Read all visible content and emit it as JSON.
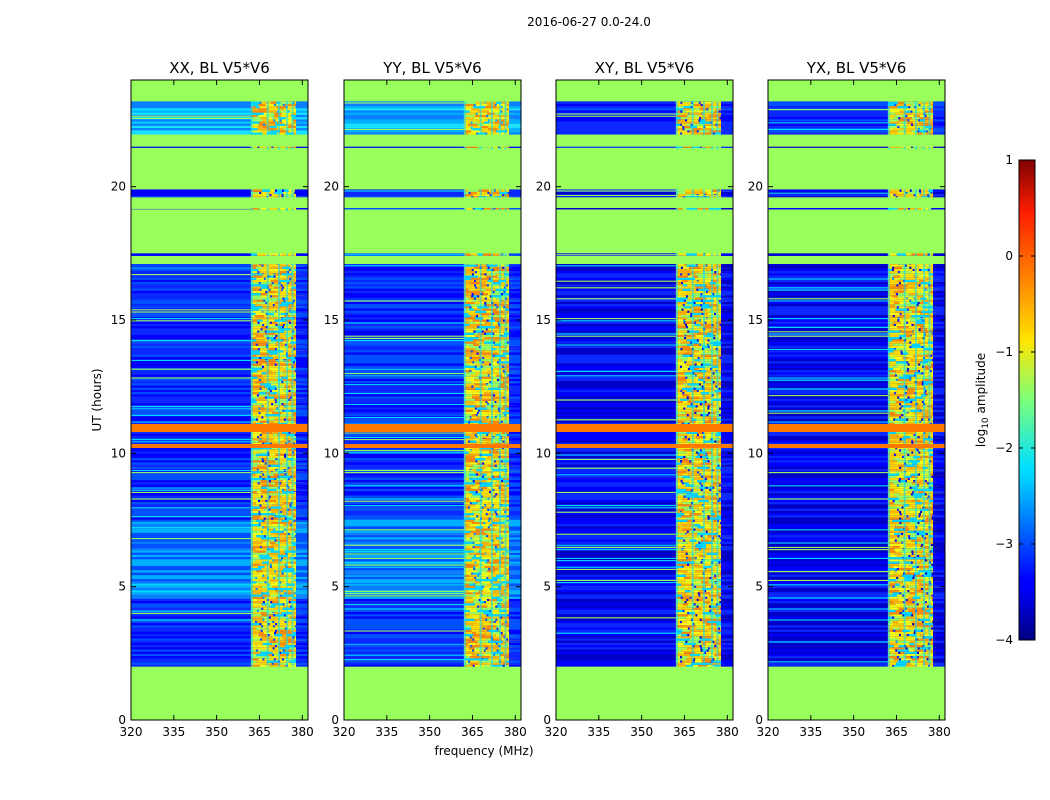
{
  "chart_data": {
    "type": "heatmap",
    "suptitle": "2016-06-27 0.0-24.0",
    "xlabel": "frequency (MHz)",
    "ylabel": "UT (hours)",
    "xlim": [
      320,
      382
    ],
    "ylim": [
      0,
      24
    ],
    "x_ticks": [
      320,
      335,
      350,
      365,
      380
    ],
    "y_ticks": [
      0,
      5,
      10,
      15,
      20
    ],
    "panels": [
      {
        "title": "XX, BL V5*V6",
        "variant": "parallel"
      },
      {
        "title": "YY, BL V5*V6",
        "variant": "parallel"
      },
      {
        "title": "XY, BL V5*V6",
        "variant": "cross"
      },
      {
        "title": "YX, BL V5*V6",
        "variant": "cross"
      }
    ],
    "flagged_time_ranges_hours": [
      [
        0,
        2.0
      ],
      [
        17.1,
        17.4
      ],
      [
        19.2,
        19.6
      ],
      [
        21.5,
        21.9
      ]
    ],
    "flagged_gaps_hours": [
      [
        17.5,
        19.1
      ],
      [
        19.9,
        21.4
      ],
      [
        21.8,
        21.95
      ]
    ],
    "high_amplitude_time_ranges_hours": [
      [
        10.8,
        11.1
      ],
      [
        10.2,
        10.35
      ]
    ],
    "rfi_frequency_band_mhz": [
      362,
      382
    ],
    "colorbar": {
      "label_prefix": "log",
      "label_subscript": "10",
      "label_suffix": " amplitude",
      "min": -4,
      "max": 1,
      "ticks": [
        1,
        0,
        -1,
        -2,
        -3,
        -4
      ],
      "tick_labels": [
        "1",
        "0",
        "−1",
        "−2",
        "−3",
        "−4"
      ]
    }
  }
}
